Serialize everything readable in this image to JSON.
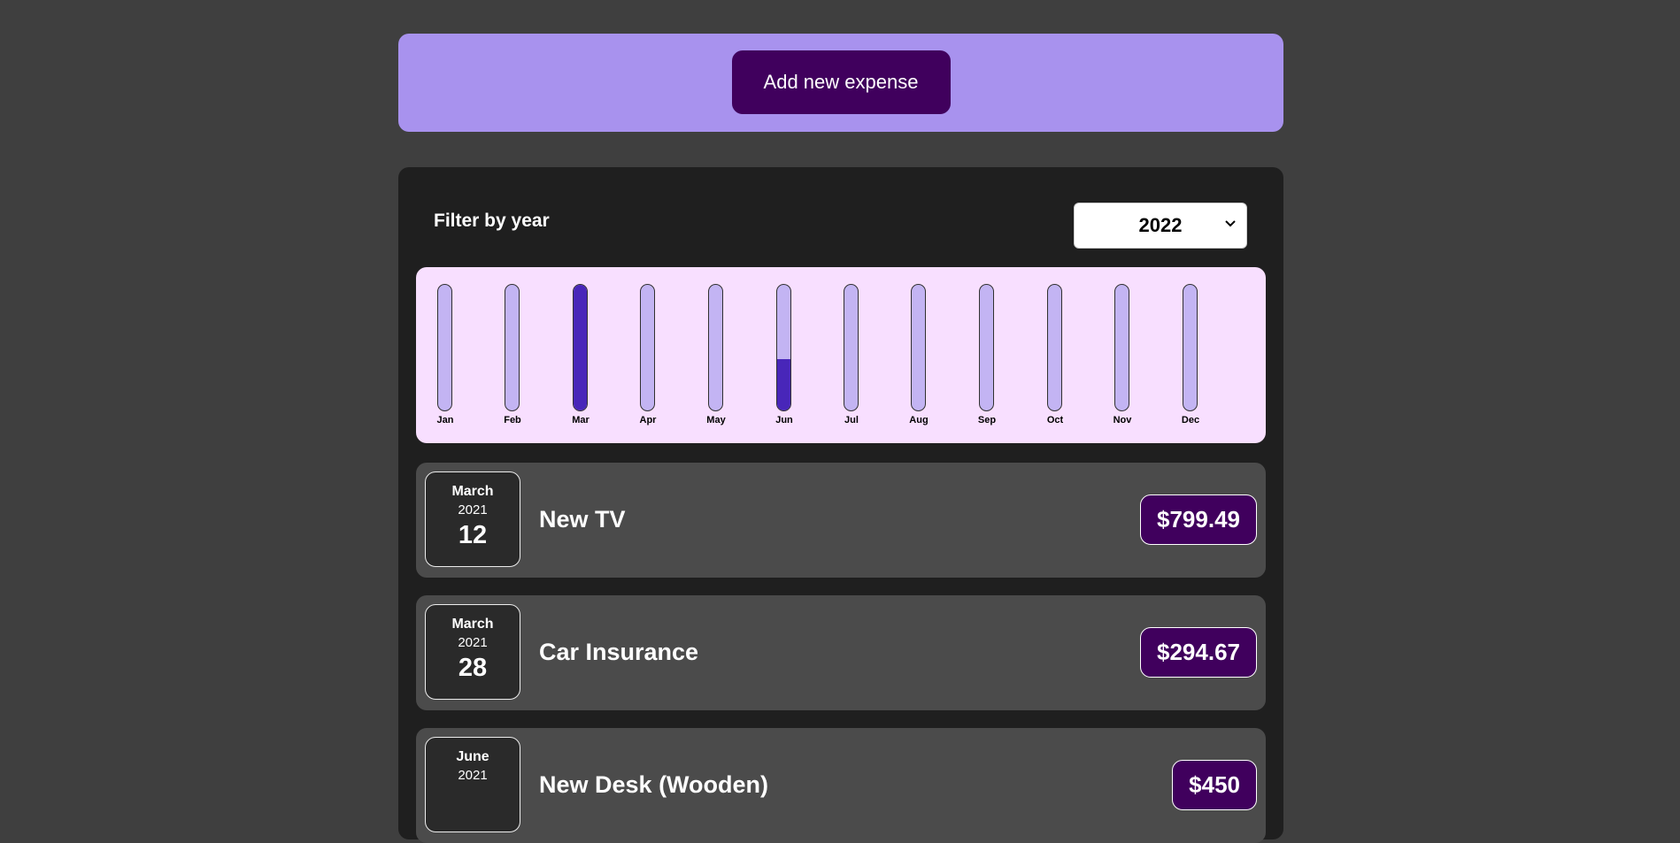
{
  "new_expense": {
    "button_label": "Add new expense"
  },
  "filter": {
    "label": "Filter by year",
    "selected_year": "2022"
  },
  "chart_data": {
    "type": "bar",
    "categories": [
      "Jan",
      "Feb",
      "Mar",
      "Apr",
      "May",
      "Jun",
      "Jul",
      "Aug",
      "Sep",
      "Oct",
      "Nov",
      "Dec"
    ],
    "values": [
      0,
      0,
      1.0,
      0,
      0,
      0.41,
      0,
      0,
      0,
      0,
      0,
      0
    ],
    "ylim": [
      0,
      1
    ],
    "fill_color": "#4826b9",
    "empty_color": "#c3b4f3"
  },
  "expenses": [
    {
      "month": "March",
      "year": "2021",
      "day": "12",
      "title": "New TV",
      "amount": "$799.49"
    },
    {
      "month": "March",
      "year": "2021",
      "day": "28",
      "title": "Car Insurance",
      "amount": "$294.67"
    },
    {
      "month": "June",
      "year": "2021",
      "day": "",
      "title": "New Desk (Wooden)",
      "amount": "$450"
    }
  ],
  "colors": {
    "background": "#3f3f3f",
    "header_panel": "#a892ee",
    "button": "#40005d",
    "chart_background": "#f8dfff",
    "item_background": "#4b4b4b"
  }
}
